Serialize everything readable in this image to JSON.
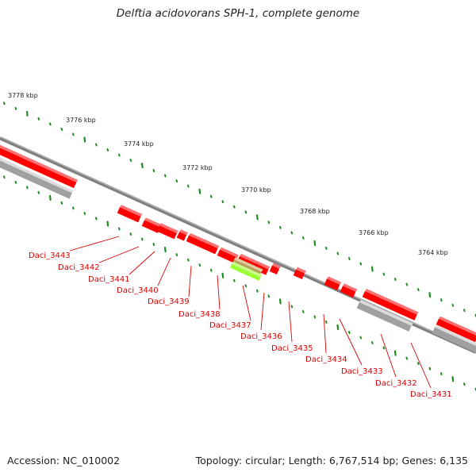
{
  "title": "Delftia acidovorans SPH-1, complete genome",
  "footer": {
    "accession": "Accession: NC_010002",
    "summary": "Topology: circular; Length: 6,767,514 bp; Genes: 6,135"
  },
  "colors": {
    "backbone": "#808080",
    "gene_forward": "#ff0000",
    "gene_reverse": "#ff0000",
    "rna": "#a0a0a0",
    "highlight": "#99ff33",
    "tick": "#1e8c1e",
    "label": "#dd0000"
  },
  "scale_labels": [
    "3778 kbp",
    "3776 kbp",
    "3774 kbp",
    "3772 kbp",
    "3770 kbp",
    "3768 kbp",
    "3766 kbp",
    "3764 kbp"
  ],
  "gene_labels": [
    "Daci_3443",
    "Daci_3442",
    "Daci_3441",
    "Daci_3440",
    "Daci_3439",
    "Daci_3438",
    "Daci_3437",
    "Daci_3436",
    "Daci_3435",
    "Daci_3434",
    "Daci_3433",
    "Daci_3432",
    "Daci_3431"
  ]
}
